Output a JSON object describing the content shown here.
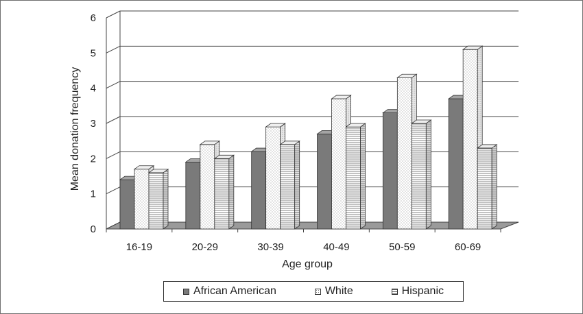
{
  "chart_data": {
    "type": "bar",
    "title": "",
    "xlabel": "Age group",
    "ylabel": "Mean donation frequency",
    "ylim": [
      0,
      6
    ],
    "yticks": [
      "0",
      "1",
      "2",
      "3",
      "4",
      "5",
      "6"
    ],
    "categories": [
      "16-19",
      "20-29",
      "30-39",
      "40-49",
      "50-59",
      "60-69"
    ],
    "series": [
      {
        "name": "African American",
        "values": [
          1.4,
          1.9,
          2.2,
          2.7,
          3.3,
          3.7
        ],
        "color": "#7a7a7a",
        "pattern": "solid"
      },
      {
        "name": "White",
        "values": [
          1.7,
          2.4,
          2.9,
          3.7,
          4.3,
          5.1
        ],
        "color": "#ffffff",
        "pattern": "dots"
      },
      {
        "name": "Hispanic",
        "values": [
          1.6,
          2.0,
          2.4,
          2.9,
          3.0,
          2.3
        ],
        "color": "#ffffff",
        "pattern": "hlines"
      }
    ],
    "grid": true,
    "legend_position": "bottom"
  }
}
